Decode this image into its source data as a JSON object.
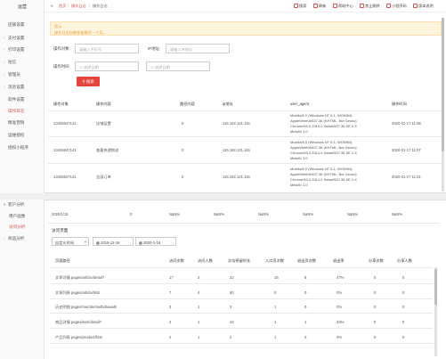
{
  "sidebar": {
    "title": "运营",
    "items": [
      {
        "label": "店铺设置",
        "arrow": ""
      },
      {
        "label": "支付设置",
        "arrow": "›"
      },
      {
        "label": "打印设置",
        "arrow": "›"
      },
      {
        "label": "短信",
        "arrow": "›"
      },
      {
        "label": "管理员",
        "arrow": "›"
      },
      {
        "label": "消息设置",
        "arrow": "›"
      },
      {
        "label": "软件设置",
        "arrow": ""
      },
      {
        "label": "操作日志",
        "arrow": ""
      },
      {
        "label": "精准营销",
        "arrow": ""
      },
      {
        "label": "运维授权",
        "arrow": ""
      },
      {
        "label": "授权小程序",
        "arrow": ""
      }
    ]
  },
  "header": {
    "breadcrumb": [
      "首页",
      "操作日志",
      "操作日志"
    ],
    "links": [
      "搜索",
      "刷新",
      "帮助中心",
      "禁止跳转",
      "小程序码",
      "版本说明"
    ]
  },
  "alert": {
    "title": "提示",
    "text": "操作日志仅能保留最近一个月。"
  },
  "form": {
    "operator_label": "操作对象:",
    "operator_placeholder": "请输入手机号",
    "ip_label": "IP地址:",
    "ip_placeholder": "请输入IP地址",
    "time_label": "操作时间:",
    "start_placeholder": "选择日期",
    "end_placeholder": "选择日期",
    "search_label": "搜索"
  },
  "log_table": {
    "headers": [
      "操作对象",
      "操作内容",
      "路径内容",
      "ip地址",
      "user_agent",
      "操作时间"
    ],
    "rows": [
      {
        "object": "13426647141",
        "content": "店铺设置",
        "path": "0",
        "ip": "115.192.121.161",
        "ua": "Mozilla/5.0 (Windows NT 6.1; WOW64) AppleWebKit/537.36 (KHTML, like Gecko) Chrome/63.0.3314.0 Safari/537.36 SE 2.X MetaSr 1.0",
        "time": "2020-01-17 11:08"
      },
      {
        "object": "13426647141",
        "content": "查看快递物流",
        "path": "0",
        "ip": "115.192.121.161",
        "ua": "Mozilla/5.0 (Windows NT 6.1; WOW64) AppleWebKit/537.36 (KHTML, like Gecko) Chrome/63.0.3314.0 Safari/537.36 SE 2.X MetaSr 1.0",
        "time": "2020-01-17 11:07"
      },
      {
        "object": "13426647141",
        "content": "全部订单",
        "path": "0",
        "ip": "115.192.121.161",
        "ua": "Mozilla/5.0 (Windows NT 6.1; WOW64) AppleWebKit/537.36 (KHTML, like Gecko) Chrome/63.0.3314.0 Safari/537.36 SE 2.X MetaSr 1.0",
        "time": "2020-01-17 11:01"
      }
    ]
  },
  "bottom_sidebar": {
    "items": [
      {
        "label": "客户分析",
        "arrow": "▾",
        "active": false
      },
      {
        "label": "用户画像",
        "arrow": "",
        "active": false
      },
      {
        "label": "访问分析",
        "arrow": "",
        "active": true
      },
      {
        "label": "商品分析",
        "arrow": "›",
        "active": false
      }
    ]
  },
  "summary_row": {
    "cells": [
      "2020/1/15",
      "0",
      "NaN%",
      "NaN%",
      "NaN%",
      "NaN%",
      "NaN%",
      "NaN%",
      "NaN%"
    ]
  },
  "visit": {
    "section_title": "访问页面",
    "range_select": "自定义时间",
    "start_date": "2019-12-16",
    "end_date": "2020-1-16",
    "headers": [
      "页面路径",
      "访问次数",
      "访问人数",
      "次均停留时长",
      "入口页次数",
      "退出页次数",
      "退出率",
      "分享次数",
      "分享人数"
    ],
    "rows": [
      {
        "path": "文章详情 pages/article/detail?",
        "c1": "17",
        "c2": "2",
        "c3": "22",
        "c4": "16",
        "c5": "8",
        "c6": "47%",
        "c7": "0",
        "c8": "0"
      },
      {
        "path": "文章列表 pages/article/lists",
        "c1": "7",
        "c2": "4",
        "c3": "60",
        "c4": "0",
        "c5": "0",
        "c6": "0%",
        "c7": "0",
        "c8": "0"
      },
      {
        "path": "历史明细 pages/member/withdrawals",
        "c1": "3",
        "c2": "1",
        "c3": "3",
        "c4": "1",
        "c5": "0",
        "c6": "0%",
        "c7": "0",
        "c8": "0"
      },
      {
        "path": "商品详情 pages/item/detail?",
        "c1": "3",
        "c2": "1",
        "c3": "44",
        "c4": "1",
        "c5": "1",
        "c6": "33%",
        "c7": "0",
        "c8": "0"
      },
      {
        "path": "产品列表 pages/product/lists",
        "c1": "2",
        "c2": "1",
        "c3": "2",
        "c4": "1",
        "c5": "0",
        "c6": "0%",
        "c7": "0",
        "c8": "0"
      }
    ]
  },
  "colors": {
    "accent": "#e5453c",
    "warning_bg": "#fff4dd",
    "warning_text": "#e6a23c"
  }
}
